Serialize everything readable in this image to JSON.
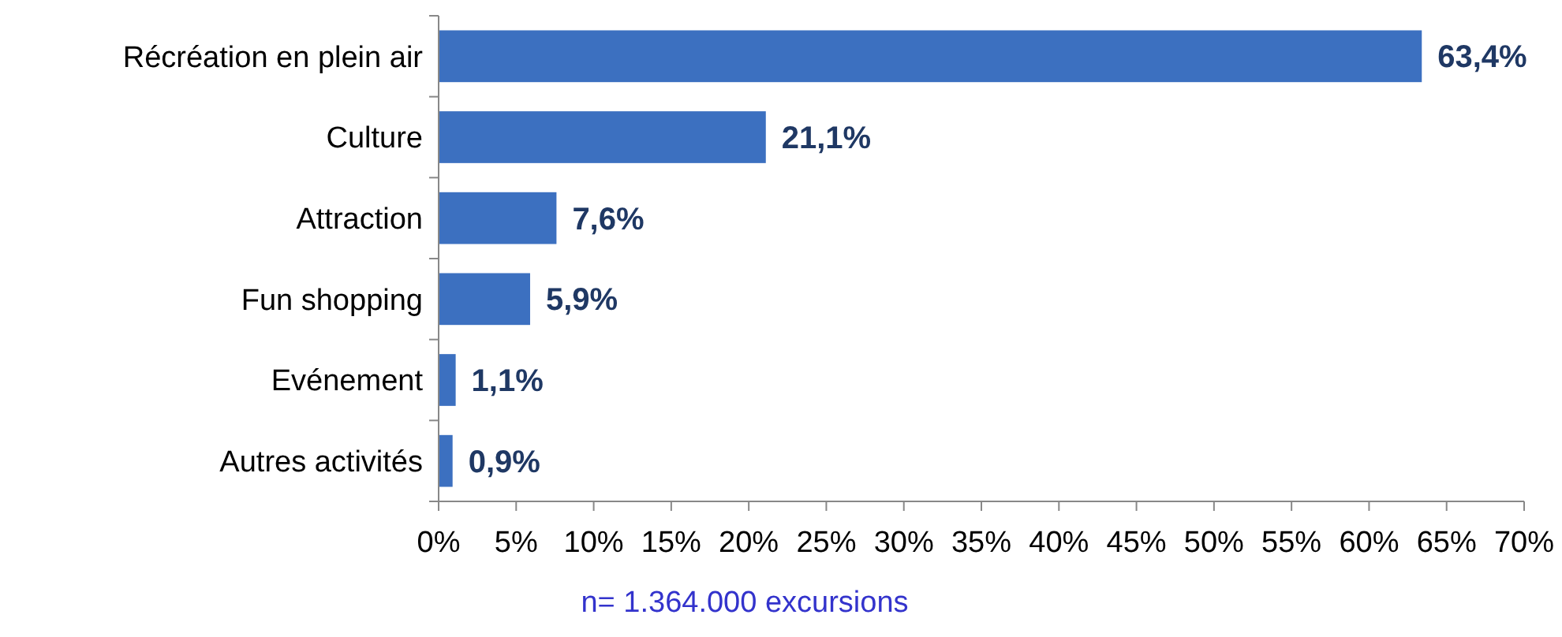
{
  "chart_data": {
    "type": "bar",
    "orientation": "horizontal",
    "categories": [
      "Récréation en plein air",
      "Culture",
      "Attraction",
      "Fun shopping",
      "Evénement",
      "Autres activités"
    ],
    "values": [
      63.4,
      21.1,
      7.6,
      5.9,
      1.1,
      0.9
    ],
    "value_labels": [
      "63,4%",
      "21,1%",
      "7,6%",
      "5,9%",
      "1,1%",
      "0,9%"
    ],
    "color": "#3c70c0",
    "xlim": [
      0,
      70
    ],
    "xticks": [
      {
        "value": 0,
        "label": "0%"
      },
      {
        "value": 5,
        "label": "5%"
      },
      {
        "value": 10,
        "label": "10%"
      },
      {
        "value": 15,
        "label": "15%"
      },
      {
        "value": 20,
        "label": "20%"
      },
      {
        "value": 25,
        "label": "25%"
      },
      {
        "value": 30,
        "label": "30%"
      },
      {
        "value": 35,
        "label": "35%"
      },
      {
        "value": 40,
        "label": "40%"
      },
      {
        "value": 45,
        "label": "45%"
      },
      {
        "value": 50,
        "label": "50%"
      },
      {
        "value": 55,
        "label": "55%"
      },
      {
        "value": 60,
        "label": "60%"
      },
      {
        "value": 65,
        "label": "65%"
      },
      {
        "value": 70,
        "label": "70%"
      }
    ],
    "annotations": [
      "n= 1.364.000 excursions"
    ]
  }
}
